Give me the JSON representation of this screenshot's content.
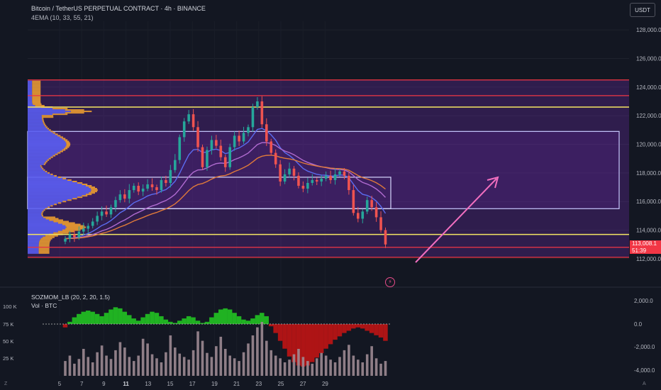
{
  "header": {
    "title": "Bitcoin / TetherUS PERPETUAL CONTRACT · 4h · BINANCE",
    "indicator": "4EMA (10, 33, 55, 21)"
  },
  "currency_label": "USDT",
  "price_tag": {
    "price": "113,008.1",
    "countdown": "51:39"
  },
  "sub_panel": {
    "indicator1": "SOZMOM_LB (20, 2, 20, 1.5)",
    "indicator2": "Vol · BTC"
  },
  "corner_labels": {
    "left": "Z",
    "right": "A"
  },
  "colors": {
    "background": "#131722",
    "bull": "#26a69a",
    "bear": "#ef5350",
    "box_fill": "#7b2fbe",
    "blue_profile": "#5b5ff5",
    "orange_profile": "#f0a030",
    "yellow_line": "#f5e663",
    "red_line": "#f23645",
    "arrow": "#f36fc0",
    "ema_blue": "#5b6cf0",
    "ema_purple": "#b06bd0",
    "ema_orange": "#e07a3a",
    "mom_green": "#22c322",
    "mom_red": "#c01414",
    "volume": "#9d8a92"
  },
  "chart_data": {
    "type": "candlestick",
    "x_tick_labels": [
      "5",
      "7",
      "9",
      "11",
      "13",
      "15",
      "17",
      "19",
      "21",
      "23",
      "25",
      "27",
      "29"
    ],
    "y_tick_labels": [
      "112,000.0",
      "114,000.0",
      "116,000.0",
      "118,000.0",
      "120,000.0",
      "122,000.0",
      "124,000.0",
      "126,000.0",
      "128,000.0"
    ],
    "ylim": [
      111500,
      128600
    ],
    "horizontal_levels": {
      "red": [
        124500,
        123400,
        112800,
        112100
      ],
      "yellow": [
        122600,
        113700
      ]
    },
    "range_boxes": [
      {
        "name": "upper-box",
        "top": 120900,
        "bottom": 115500
      },
      {
        "name": "mid-box",
        "top": 117700,
        "bottom": 115500
      }
    ],
    "closes": [
      113400,
      113700,
      113500,
      113900,
      114100,
      114300,
      114600,
      115000,
      115300,
      115100,
      115600,
      116100,
      116500,
      116200,
      116800,
      117100,
      116700,
      116900,
      117200,
      117000,
      116800,
      117500,
      117300,
      118200,
      118900,
      120500,
      121600,
      122100,
      121200,
      119800,
      118400,
      119600,
      120300,
      119900,
      119100,
      118400,
      119800,
      120600,
      120200,
      120800,
      121200,
      122600,
      123000,
      121400,
      120200,
      119400,
      118600,
      117400,
      117900,
      118300,
      117800,
      117100,
      116900,
      117300,
      117500,
      117400,
      117600,
      117800,
      117500,
      117900,
      118100,
      117800,
      116800,
      115200,
      114800,
      115300,
      116100,
      115600,
      114900,
      114000,
      113000
    ],
    "sub_axis": {
      "left_labels": [
        "100 K",
        "75 K",
        "50 K",
        "25 K"
      ],
      "right_labels": [
        "2,000.0",
        "0.0",
        "-2,000.0",
        "-4,000.0"
      ]
    },
    "momentum": [
      -300,
      200,
      600,
      900,
      1100,
      1200,
      1100,
      900,
      700,
      1000,
      1300,
      1500,
      1400,
      1100,
      800,
      500,
      300,
      600,
      900,
      1100,
      1000,
      700,
      400,
      200,
      100,
      300,
      500,
      700,
      600,
      300,
      100,
      200,
      600,
      1000,
      1300,
      1400,
      1300,
      1000,
      700,
      400,
      300,
      500,
      800,
      1000,
      700,
      -200,
      -800,
      -1500,
      -2200,
      -2900,
      -3400,
      -3700,
      -3800,
      -3700,
      -3400,
      -3000,
      -2600,
      -2200,
      -1800,
      -1400,
      -1100,
      -800,
      -600,
      -400,
      -300,
      -400,
      -600,
      -800,
      -1000,
      -1200,
      -1500
    ],
    "volume": [
      22,
      30,
      18,
      25,
      40,
      28,
      20,
      35,
      45,
      30,
      25,
      38,
      50,
      42,
      28,
      22,
      30,
      55,
      48,
      32,
      26,
      20,
      35,
      60,
      42,
      33,
      28,
      24,
      38,
      66,
      52,
      34,
      28,
      44,
      58,
      40,
      30,
      26,
      22,
      35,
      48,
      60,
      72,
      80,
      52,
      38,
      30,
      26,
      20,
      24,
      32,
      40,
      28,
      22,
      18,
      26,
      34,
      30,
      24,
      20,
      28,
      38,
      46,
      30,
      24,
      20,
      32,
      44,
      26,
      18,
      22
    ]
  }
}
